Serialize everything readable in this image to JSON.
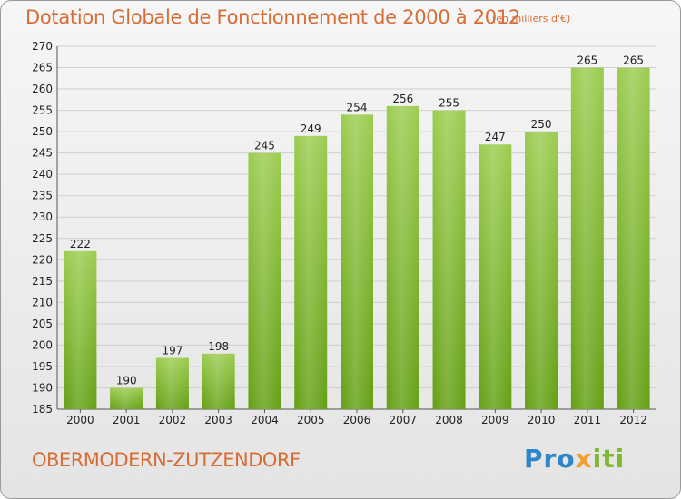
{
  "header": {
    "title": "Dotation Globale de Fonctionnement de 2000 à 2012",
    "unit": "(en milliers d'€)"
  },
  "footer": {
    "commune": "OBERMODERN-ZUTZENDORF",
    "logo_text": "Proxiti"
  },
  "colors": {
    "bar_top": "#9ccc50",
    "bar_bottom": "#64a014",
    "accent": "#d86c35",
    "grid": "#cfcfcf"
  },
  "chart_data": {
    "type": "bar",
    "title": "Dotation Globale de Fonctionnement de 2000 à 2012",
    "subtitle": "(en milliers d'€)",
    "categories": [
      "2000",
      "2001",
      "2002",
      "2003",
      "2004",
      "2005",
      "2006",
      "2007",
      "2008",
      "2009",
      "2010",
      "2011",
      "2012"
    ],
    "values": [
      222,
      190,
      197,
      198,
      245,
      249,
      254,
      256,
      255,
      247,
      250,
      265,
      265
    ],
    "ylim": [
      185,
      270
    ],
    "yticks": [
      185,
      190,
      195,
      200,
      205,
      210,
      215,
      220,
      225,
      230,
      235,
      240,
      245,
      250,
      255,
      260,
      265,
      270
    ],
    "grid": true,
    "data_labels": true
  }
}
